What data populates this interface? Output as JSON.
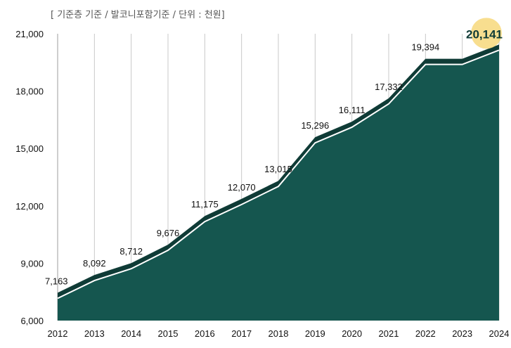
{
  "unit_note": "[ 기준층 기준 / 발코니포함기준 / 단위 : 천원]",
  "colors": {
    "area_fill": "#15564f",
    "top_band": "#0f3b36",
    "outline": "#ffffff",
    "grid": "#c8c8c8",
    "axis": "#bdbdbd",
    "text": "#111111",
    "highlight_circle": "#f6d36a",
    "highlight_text": "#0f3b36"
  },
  "chart_data": {
    "type": "area",
    "title": "",
    "xlabel": "",
    "ylabel": "",
    "x": [
      "2012",
      "2013",
      "2014",
      "2015",
      "2016",
      "2017",
      "2018",
      "2019",
      "2020",
      "2021",
      "2022",
      "2023",
      "2024"
    ],
    "series": [
      {
        "values": [
          7163,
          8092,
          8712,
          9676,
          11175,
          12070,
          13015,
          15296,
          16111,
          17332,
          19394,
          19394,
          20141
        ]
      }
    ],
    "data_labels": [
      "7,163",
      "8,092",
      "8,712",
      "9,676",
      "11,175",
      "12,070",
      "13,015",
      "15,296",
      "16,111",
      "17,332",
      "19,394",
      "",
      "20,141"
    ],
    "ylim": [
      6000,
      21000
    ],
    "yticks": [
      6000,
      9000,
      12000,
      15000,
      18000,
      21000
    ],
    "ytick_labels": [
      "6,000",
      "9,000",
      "12,000",
      "15,000",
      "18,000",
      "21,000"
    ],
    "grid": "vertical",
    "highlight_index": 12
  }
}
